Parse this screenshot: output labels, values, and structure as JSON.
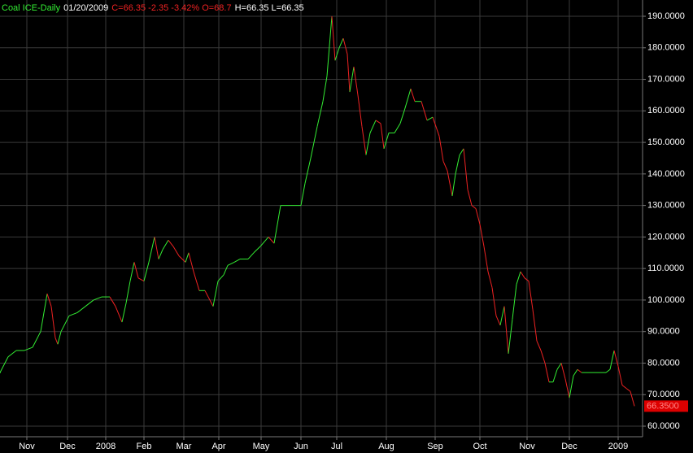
{
  "chart_data": {
    "type": "line",
    "title": "Coal ICE-Daily",
    "date": "01/20/2009",
    "quote": "C=66.35 -2.35 -3.42% O=68.7",
    "range": "H=66.35 L=66.35",
    "up_color": "#33ee33",
    "down_color": "#ee2222",
    "x": [
      0,
      10,
      20,
      30,
      40,
      50,
      58,
      63,
      68,
      71,
      75,
      85,
      95,
      105,
      115,
      125,
      135,
      142,
      150,
      155,
      160,
      165,
      170,
      177,
      183,
      190,
      195,
      200,
      207,
      213,
      220,
      228,
      232,
      238,
      245,
      252,
      258,
      262,
      268,
      275,
      280,
      288,
      295,
      305,
      312,
      320,
      330,
      337,
      345,
      355,
      370,
      375,
      382,
      390,
      397,
      402,
      408,
      412,
      417,
      422,
      427,
      430,
      435,
      440,
      445,
      450,
      455,
      462,
      468,
      472,
      478,
      485,
      492,
      497,
      505,
      510,
      518,
      525,
      532,
      540,
      545,
      550,
      556,
      560,
      565,
      570,
      575,
      580,
      585,
      590,
      595,
      600,
      605,
      610,
      615,
      620,
      625,
      630,
      635,
      640,
      645,
      650,
      655,
      660,
      665,
      670,
      675,
      680,
      685,
      690,
      695,
      700,
      705,
      710,
      715,
      725,
      735,
      745,
      750,
      755,
      760,
      765,
      770,
      775,
      780
    ],
    "values": [
      77,
      82,
      84,
      84,
      85,
      90,
      102,
      98,
      88,
      86,
      90,
      95,
      96,
      98,
      100,
      101,
      101,
      98,
      93,
      99,
      106,
      112,
      107,
      106,
      112,
      120,
      113,
      116,
      119,
      117,
      114,
      112,
      115,
      109,
      103,
      103,
      100,
      98,
      106,
      108,
      111,
      112,
      113,
      113,
      115,
      117,
      120,
      118,
      130,
      130,
      130,
      137,
      145,
      155,
      163,
      171,
      190,
      176,
      180,
      183,
      178,
      166,
      174,
      165,
      155,
      146,
      153,
      157,
      156,
      148,
      153,
      153,
      156,
      160,
      167,
      163,
      163,
      157,
      158,
      152,
      144,
      141,
      133,
      140,
      146,
      148,
      135,
      130,
      129,
      124,
      117,
      109,
      104,
      95,
      92,
      98,
      83,
      94,
      105,
      109,
      107,
      106,
      97,
      87,
      84,
      80,
      74,
      74,
      78,
      80,
      75,
      69,
      76,
      78,
      77,
      77,
      77,
      77,
      78,
      84,
      79,
      73,
      72,
      71,
      66.35
    ],
    "last_label": {
      "value": 66.35,
      "label": "66.3500"
    },
    "xlim": [
      0,
      790
    ],
    "xticks": [
      {
        "value": 33,
        "label": "Nov"
      },
      {
        "value": 83,
        "label": "Dec"
      },
      {
        "value": 130,
        "label": "2008"
      },
      {
        "value": 177,
        "label": "Feb"
      },
      {
        "value": 226,
        "label": "Mar"
      },
      {
        "value": 269,
        "label": "Apr"
      },
      {
        "value": 321,
        "label": "May"
      },
      {
        "value": 370,
        "label": "Jun"
      },
      {
        "value": 414,
        "label": "Jul"
      },
      {
        "value": 475,
        "label": "Aug"
      },
      {
        "value": 535,
        "label": "Sep"
      },
      {
        "value": 590,
        "label": "Oct"
      },
      {
        "value": 648,
        "label": "Nov"
      },
      {
        "value": 700,
        "label": "Dec"
      },
      {
        "value": 760,
        "label": "2009"
      }
    ],
    "ylim": [
      56.65,
      195.16
    ],
    "yticks": [
      {
        "value": 60,
        "label": "60.0000"
      },
      {
        "value": 70,
        "label": "70.0000"
      },
      {
        "value": 80,
        "label": "80.0000"
      },
      {
        "value": 90,
        "label": "90.0000"
      },
      {
        "value": 100,
        "label": "100.0000"
      },
      {
        "value": 110,
        "label": "110.0000"
      },
      {
        "value": 120,
        "label": "120.0000"
      },
      {
        "value": 130,
        "label": "130.0000"
      },
      {
        "value": 140,
        "label": "140.0000"
      },
      {
        "value": 150,
        "label": "150.0000"
      },
      {
        "value": 160,
        "label": "160.0000"
      },
      {
        "value": 170,
        "label": "170.0000"
      },
      {
        "value": 180,
        "label": "180.0000"
      },
      {
        "value": 190,
        "label": "190.0000"
      }
    ],
    "grid": true
  }
}
